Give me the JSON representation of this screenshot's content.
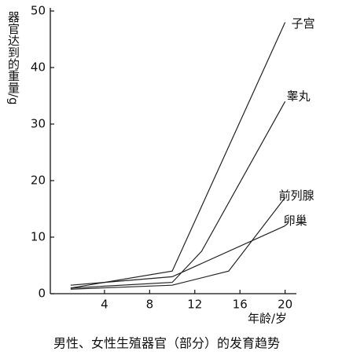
{
  "chart_data": {
    "type": "line",
    "title": "男性、女性生殖器官（部分）的发育趋势",
    "x_label": "年龄/岁",
    "y_label": "器官达到的重量/g",
    "xlim": [
      -0.8,
      21
    ],
    "xticks": [
      4,
      8,
      12,
      16,
      20
    ],
    "ylim": [
      0,
      50
    ],
    "yticks": [
      0,
      10,
      20,
      30,
      40,
      50
    ],
    "series": [
      {
        "name": "子宫",
        "color": "#222222",
        "x": [
          1,
          10,
          20
        ],
        "values": [
          1,
          4,
          48
        ]
      },
      {
        "name": "睾丸",
        "color": "#222222",
        "x": [
          1,
          10,
          12.6,
          20
        ],
        "values": [
          1,
          2,
          7.5,
          34
        ]
      },
      {
        "name": "前列腺",
        "color": "#222222",
        "x": [
          1,
          10,
          15,
          20
        ],
        "values": [
          0.8,
          1.5,
          4,
          17
        ]
      },
      {
        "name": "卵巢",
        "color": "#222222",
        "x": [
          1,
          10,
          20
        ],
        "values": [
          1.5,
          3,
          12
        ]
      }
    ]
  }
}
